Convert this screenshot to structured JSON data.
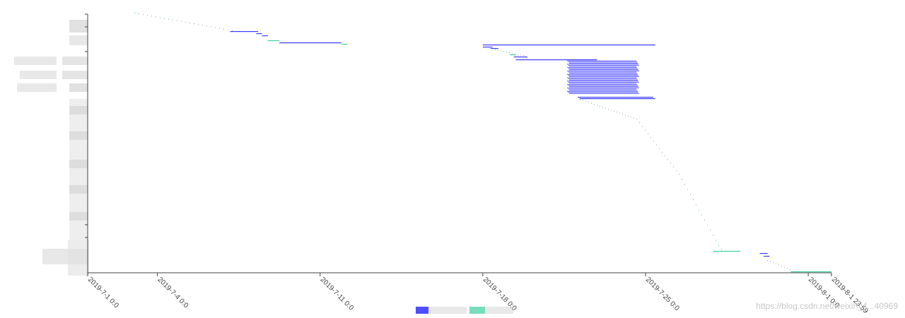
{
  "chart_data": {
    "type": "gantt",
    "title": "",
    "xlabel": "",
    "ylabel": "",
    "x_axis": {
      "min": "2019-07-01T00:00",
      "max": "2019-08-01T23:59",
      "ticks": [
        {
          "value": "2019-07-01T00:00",
          "label": "2019-7-1 0:0"
        },
        {
          "value": "2019-07-04T00:00",
          "label": "2019-7-4 0:0"
        },
        {
          "value": "2019-07-11T00:00",
          "label": "2019-7-11 0:0"
        },
        {
          "value": "2019-07-18T00:00",
          "label": "2019-7-18 0:0"
        },
        {
          "value": "2019-07-25T00:00",
          "label": "2019-7-25 0:0"
        },
        {
          "value": "2019-08-01T00:00",
          "label": "2019-8-1 0:0"
        },
        {
          "value": "2019-08-01T23:59",
          "label": "2019-8-1 23:59"
        }
      ]
    },
    "y_axis": {
      "labels_obscured": true
    },
    "grid": false,
    "legend": {
      "position": "bottom-center",
      "obscured": true
    },
    "colors": {
      "blue": "#3b3bff",
      "teal": "#3ecfa0",
      "axis": "#444444"
    },
    "segments": [
      {
        "start": "2019-07-07T03:00",
        "end": "2019-07-08T08:00",
        "color": "blue"
      },
      {
        "start": "2019-07-08T06:00",
        "end": "2019-07-08T12:00",
        "color": "blue"
      },
      {
        "start": "2019-07-08T12:00",
        "end": "2019-07-08T18:00",
        "color": "blue"
      },
      {
        "start": "2019-07-08T18:00",
        "end": "2019-07-09T06:00",
        "color": "teal"
      },
      {
        "start": "2019-07-09T06:00",
        "end": "2019-07-11T22:00",
        "color": "blue"
      },
      {
        "start": "2019-07-11T22:00",
        "end": "2019-07-12T04:00",
        "color": "teal"
      },
      {
        "start": "2019-07-18T00:00",
        "end": "2019-07-25T10:00",
        "color": "blue"
      },
      {
        "start": "2019-07-18T00:00",
        "end": "2019-07-18T10:00",
        "color": "blue"
      },
      {
        "start": "2019-07-18T08:00",
        "end": "2019-07-18T16:00",
        "color": "blue"
      },
      {
        "start": "2019-07-19T04:00",
        "end": "2019-07-19T10:00",
        "color": "teal"
      },
      {
        "start": "2019-07-19T08:00",
        "end": "2019-07-19T22:00",
        "color": "blue"
      },
      {
        "start": "2019-07-19T10:00",
        "end": "2019-07-22T22:00",
        "color": "blue"
      },
      {
        "start": "2019-07-22T02:00",
        "end": "2019-07-25T08:00",
        "color": "blue"
      },
      {
        "start": "2019-07-22T04:00",
        "end": "2019-07-25T10:00",
        "color": "blue"
      },
      {
        "start": "2019-07-27T22:00",
        "end": "2019-07-29T02:00",
        "color": "teal"
      },
      {
        "start": "2019-07-29T22:00",
        "end": "2019-07-30T06:00",
        "color": "blue"
      },
      {
        "start": "2019-07-30T02:00",
        "end": "2019-07-30T08:00",
        "color": "blue"
      },
      {
        "start": "2019-07-31T06:00",
        "end": "2019-08-01T23:59",
        "color": "teal"
      }
    ]
  },
  "watermark": "https://blog.csdn.net/weixin_4...40969"
}
